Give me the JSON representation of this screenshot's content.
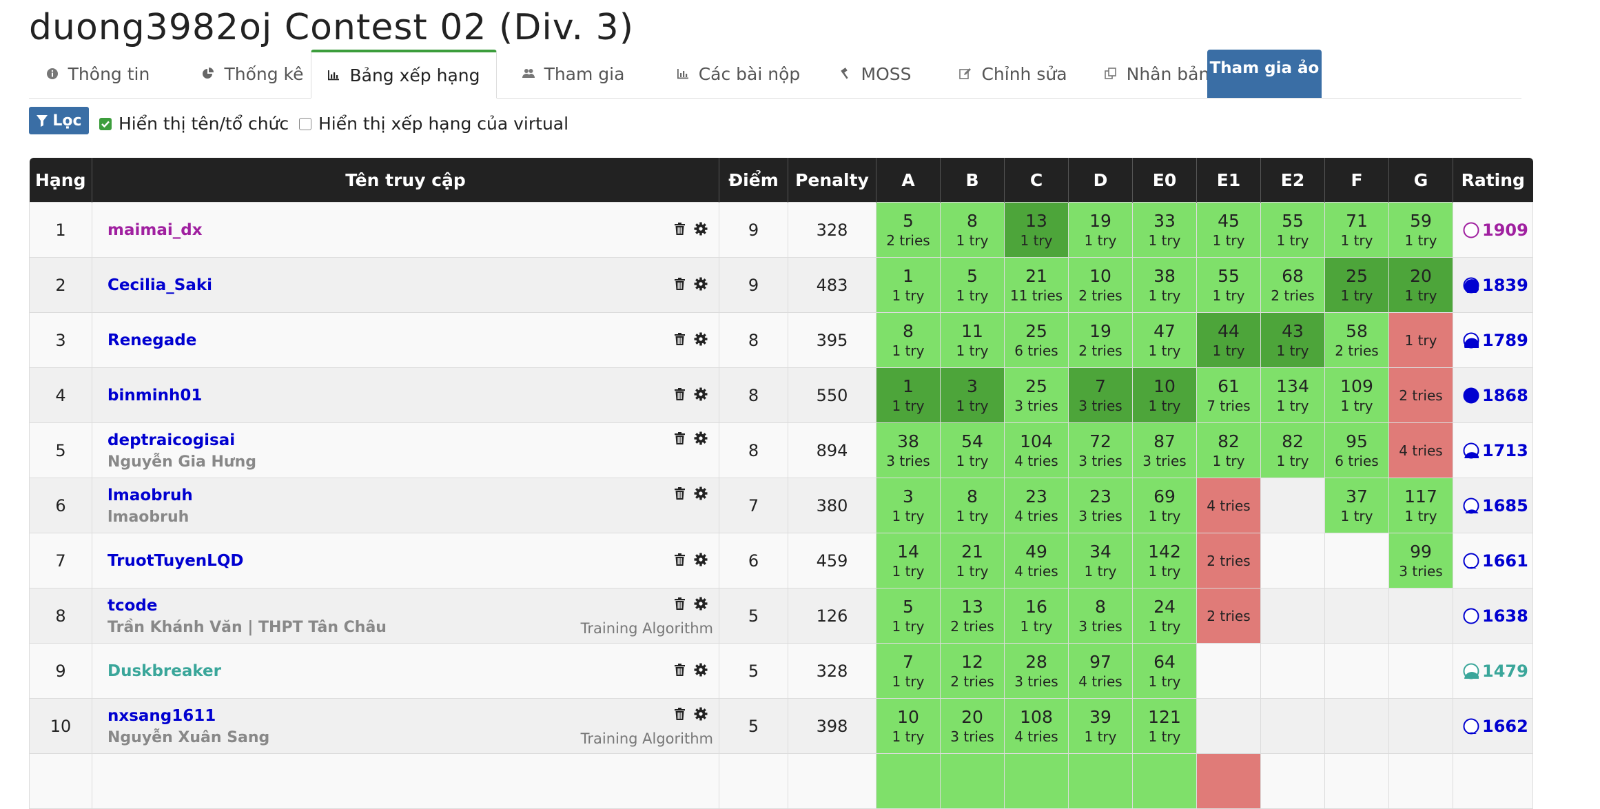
{
  "contest_title": "duong3982oj Contest 02 (Div. 3)",
  "tabs": [
    {
      "label": "Thông tin",
      "icon": "info-icon"
    },
    {
      "label": "Thống kê",
      "icon": "pie-chart-icon"
    },
    {
      "label": "Bảng xếp hạng",
      "icon": "bar-chart-icon",
      "active": true
    },
    {
      "label": "Tham gia",
      "icon": "users-icon"
    },
    {
      "label": "Các bài nộp",
      "icon": "bar-chart-icon"
    },
    {
      "label": "MOSS",
      "icon": "gavel-icon"
    },
    {
      "label": "Chỉnh sửa",
      "icon": "edit-icon"
    },
    {
      "label": "Nhân bản",
      "icon": "clone-icon"
    }
  ],
  "virtual_button": "Tham gia ảo",
  "filter": {
    "button_label": "Lọc",
    "show_name_label": "Hiển thị tên/tổ chức",
    "show_name_checked": true,
    "show_virtual_label": "Hiển thị xếp hạng của virtual",
    "show_virtual_checked": false
  },
  "table": {
    "headers": {
      "rank": "Hạng",
      "username": "Tên truy cập",
      "points": "Điểm",
      "penalty": "Penalty",
      "rating": "Rating"
    },
    "problems": [
      "A",
      "B",
      "C",
      "D",
      "E0",
      "E1",
      "E2",
      "F",
      "G"
    ],
    "colors": {
      "accepted": "#7fe06a",
      "first_solve": "#4da53a",
      "failed": "#e07b78",
      "header": "#222222"
    },
    "rows": [
      {
        "rank": "1",
        "username": "maimai_dx",
        "user_color": "#a020a0",
        "full_name": "",
        "org": "",
        "points": "9",
        "penalty": "328",
        "cells": [
          {
            "s": "ac",
            "pts": "5",
            "tries": "2 tries"
          },
          {
            "s": "ac",
            "pts": "8",
            "tries": "1 try"
          },
          {
            "s": "first",
            "pts": "13",
            "tries": "1 try"
          },
          {
            "s": "ac",
            "pts": "19",
            "tries": "1 try"
          },
          {
            "s": "ac",
            "pts": "33",
            "tries": "1 try"
          },
          {
            "s": "ac",
            "pts": "45",
            "tries": "1 try"
          },
          {
            "s": "ac",
            "pts": "55",
            "tries": "1 try"
          },
          {
            "s": "ac",
            "pts": "71",
            "tries": "1 try"
          },
          {
            "s": "ac",
            "pts": "59",
            "tries": "1 try"
          }
        ],
        "rating": "1909",
        "rating_color": "#a020a0",
        "rating_fill": 0
      },
      {
        "rank": "2",
        "username": "Cecilia_Saki",
        "user_color": "#0000d0",
        "full_name": "",
        "org": "",
        "points": "9",
        "penalty": "483",
        "cells": [
          {
            "s": "ac",
            "pts": "1",
            "tries": "1 try"
          },
          {
            "s": "ac",
            "pts": "5",
            "tries": "1 try"
          },
          {
            "s": "ac",
            "pts": "21",
            "tries": "11 tries"
          },
          {
            "s": "ac",
            "pts": "10",
            "tries": "2 tries"
          },
          {
            "s": "ac",
            "pts": "38",
            "tries": "1 try"
          },
          {
            "s": "ac",
            "pts": "55",
            "tries": "1 try"
          },
          {
            "s": "ac",
            "pts": "68",
            "tries": "2 tries"
          },
          {
            "s": "first",
            "pts": "25",
            "tries": "1 try"
          },
          {
            "s": "first",
            "pts": "20",
            "tries": "1 try"
          }
        ],
        "rating": "1839",
        "rating_color": "#0000d0",
        "rating_fill": 0.95
      },
      {
        "rank": "3",
        "username": "Renegade",
        "user_color": "#0000d0",
        "full_name": "",
        "org": "",
        "points": "8",
        "penalty": "395",
        "cells": [
          {
            "s": "ac",
            "pts": "8",
            "tries": "1 try"
          },
          {
            "s": "ac",
            "pts": "11",
            "tries": "1 try"
          },
          {
            "s": "ac",
            "pts": "25",
            "tries": "6 tries"
          },
          {
            "s": "ac",
            "pts": "19",
            "tries": "2 tries"
          },
          {
            "s": "ac",
            "pts": "47",
            "tries": "1 try"
          },
          {
            "s": "first",
            "pts": "44",
            "tries": "1 try"
          },
          {
            "s": "first",
            "pts": "43",
            "tries": "1 try"
          },
          {
            "s": "ac",
            "pts": "58",
            "tries": "2 tries"
          },
          {
            "s": "fail",
            "pts": "",
            "tries": "1 try"
          }
        ],
        "rating": "1789",
        "rating_color": "#0000d0",
        "rating_fill": 0.7
      },
      {
        "rank": "4",
        "username": "binminh01",
        "user_color": "#0000d0",
        "full_name": "",
        "org": "",
        "points": "8",
        "penalty": "550",
        "cells": [
          {
            "s": "first",
            "pts": "1",
            "tries": "1 try"
          },
          {
            "s": "first",
            "pts": "3",
            "tries": "1 try"
          },
          {
            "s": "ac",
            "pts": "25",
            "tries": "3 tries"
          },
          {
            "s": "first",
            "pts": "7",
            "tries": "3 tries"
          },
          {
            "s": "first",
            "pts": "10",
            "tries": "1 try"
          },
          {
            "s": "ac",
            "pts": "61",
            "tries": "7 tries"
          },
          {
            "s": "ac",
            "pts": "134",
            "tries": "1 try"
          },
          {
            "s": "ac",
            "pts": "109",
            "tries": "1 try"
          },
          {
            "s": "fail",
            "pts": "",
            "tries": "2 tries"
          }
        ],
        "rating": "1868",
        "rating_color": "#0000d0",
        "rating_fill": 1
      },
      {
        "rank": "5",
        "username": "deptraicogisai",
        "user_color": "#0000d0",
        "full_name": "Nguyễn Gia Hưng",
        "org": "",
        "points": "8",
        "penalty": "894",
        "cells": [
          {
            "s": "ac",
            "pts": "38",
            "tries": "3 tries"
          },
          {
            "s": "ac",
            "pts": "54",
            "tries": "1 try"
          },
          {
            "s": "ac",
            "pts": "104",
            "tries": "4 tries"
          },
          {
            "s": "ac",
            "pts": "72",
            "tries": "3 tries"
          },
          {
            "s": "ac",
            "pts": "87",
            "tries": "3 tries"
          },
          {
            "s": "ac",
            "pts": "82",
            "tries": "1 try"
          },
          {
            "s": "ac",
            "pts": "82",
            "tries": "1 try"
          },
          {
            "s": "ac",
            "pts": "95",
            "tries": "6 tries"
          },
          {
            "s": "fail",
            "pts": "",
            "tries": "4 tries"
          }
        ],
        "rating": "1713",
        "rating_color": "#0000d0",
        "rating_fill": 0.45
      },
      {
        "rank": "6",
        "username": "lmaobruh",
        "user_color": "#0000d0",
        "full_name": "lmaobruh",
        "org": "",
        "points": "7",
        "penalty": "380",
        "cells": [
          {
            "s": "ac",
            "pts": "3",
            "tries": "1 try"
          },
          {
            "s": "ac",
            "pts": "8",
            "tries": "1 try"
          },
          {
            "s": "ac",
            "pts": "23",
            "tries": "4 tries"
          },
          {
            "s": "ac",
            "pts": "23",
            "tries": "3 tries"
          },
          {
            "s": "ac",
            "pts": "69",
            "tries": "1 try"
          },
          {
            "s": "fail",
            "pts": "",
            "tries": "4 tries"
          },
          {
            "s": "none",
            "pts": "",
            "tries": ""
          },
          {
            "s": "ac",
            "pts": "37",
            "tries": "1 try"
          },
          {
            "s": "ac",
            "pts": "117",
            "tries": "1 try"
          }
        ],
        "rating": "1685",
        "rating_color": "#0000d0",
        "rating_fill": 0.3
      },
      {
        "rank": "7",
        "username": "TruotTuyenLQD",
        "user_color": "#0000d0",
        "full_name": "",
        "org": "",
        "points": "6",
        "penalty": "459",
        "cells": [
          {
            "s": "ac",
            "pts": "14",
            "tries": "1 try"
          },
          {
            "s": "ac",
            "pts": "21",
            "tries": "1 try"
          },
          {
            "s": "ac",
            "pts": "49",
            "tries": "4 tries"
          },
          {
            "s": "ac",
            "pts": "34",
            "tries": "1 try"
          },
          {
            "s": "ac",
            "pts": "142",
            "tries": "1 try"
          },
          {
            "s": "fail",
            "pts": "",
            "tries": "2 tries"
          },
          {
            "s": "none",
            "pts": "",
            "tries": ""
          },
          {
            "s": "none",
            "pts": "",
            "tries": ""
          },
          {
            "s": "ac",
            "pts": "99",
            "tries": "3 tries"
          }
        ],
        "rating": "1661",
        "rating_color": "#0000d0",
        "rating_fill": 0.15
      },
      {
        "rank": "8",
        "username": "tcode",
        "user_color": "#0000d0",
        "full_name": "Trần Khánh Văn | THPT Tân Châu",
        "org": "Training Algorithm",
        "points": "5",
        "penalty": "126",
        "cells": [
          {
            "s": "ac",
            "pts": "5",
            "tries": "1 try"
          },
          {
            "s": "ac",
            "pts": "13",
            "tries": "2 tries"
          },
          {
            "s": "ac",
            "pts": "16",
            "tries": "1 try"
          },
          {
            "s": "ac",
            "pts": "8",
            "tries": "3 tries"
          },
          {
            "s": "ac",
            "pts": "24",
            "tries": "1 try"
          },
          {
            "s": "fail",
            "pts": "",
            "tries": "2 tries"
          },
          {
            "s": "none",
            "pts": "",
            "tries": ""
          },
          {
            "s": "none",
            "pts": "",
            "tries": ""
          },
          {
            "s": "none",
            "pts": "",
            "tries": ""
          }
        ],
        "rating": "1638",
        "rating_color": "#0000d0",
        "rating_fill": 0.05
      },
      {
        "rank": "9",
        "username": "Duskbreaker",
        "user_color": "#3aa69a",
        "full_name": "",
        "org": "",
        "points": "5",
        "penalty": "328",
        "cells": [
          {
            "s": "ac",
            "pts": "7",
            "tries": "1 try"
          },
          {
            "s": "ac",
            "pts": "12",
            "tries": "2 tries"
          },
          {
            "s": "ac",
            "pts": "28",
            "tries": "3 tries"
          },
          {
            "s": "ac",
            "pts": "97",
            "tries": "4 tries"
          },
          {
            "s": "ac",
            "pts": "64",
            "tries": "1 try"
          },
          {
            "s": "none",
            "pts": "",
            "tries": ""
          },
          {
            "s": "none",
            "pts": "",
            "tries": ""
          },
          {
            "s": "none",
            "pts": "",
            "tries": ""
          },
          {
            "s": "none",
            "pts": "",
            "tries": ""
          }
        ],
        "rating": "1479",
        "rating_color": "#3aa69a",
        "rating_fill": 0.5
      },
      {
        "rank": "10",
        "username": "nxsang1611",
        "user_color": "#0000d0",
        "full_name": "Nguyễn Xuân Sang",
        "org": "Training Algorithm",
        "points": "5",
        "penalty": "398",
        "cells": [
          {
            "s": "ac",
            "pts": "10",
            "tries": "1 try"
          },
          {
            "s": "ac",
            "pts": "20",
            "tries": "3 tries"
          },
          {
            "s": "ac",
            "pts": "108",
            "tries": "4 tries"
          },
          {
            "s": "ac",
            "pts": "39",
            "tries": "1 try"
          },
          {
            "s": "ac",
            "pts": "121",
            "tries": "1 try"
          },
          {
            "s": "none",
            "pts": "",
            "tries": ""
          },
          {
            "s": "none",
            "pts": "",
            "tries": ""
          },
          {
            "s": "none",
            "pts": "",
            "tries": ""
          },
          {
            "s": "none",
            "pts": "",
            "tries": ""
          }
        ],
        "rating": "1662",
        "rating_color": "#0000d0",
        "rating_fill": 0.15
      },
      {
        "rank": "",
        "username": "",
        "user_color": "#0000d0",
        "full_name": "",
        "org": "",
        "points": "",
        "penalty": "",
        "cells": [
          {
            "s": "ac",
            "pts": "",
            "tries": ""
          },
          {
            "s": "ac",
            "pts": "",
            "tries": ""
          },
          {
            "s": "ac",
            "pts": "",
            "tries": ""
          },
          {
            "s": "ac",
            "pts": "",
            "tries": ""
          },
          {
            "s": "ac",
            "pts": "",
            "tries": ""
          },
          {
            "s": "fail",
            "pts": "",
            "tries": ""
          },
          {
            "s": "none",
            "pts": "",
            "tries": ""
          },
          {
            "s": "none",
            "pts": "",
            "tries": ""
          },
          {
            "s": "none",
            "pts": "",
            "tries": ""
          }
        ],
        "rating": "",
        "rating_color": "#0000d0",
        "rating_fill": 0
      }
    ]
  }
}
